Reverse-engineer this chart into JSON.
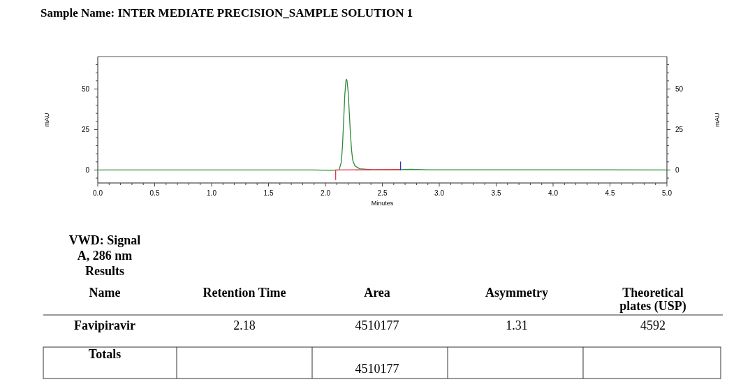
{
  "chart_data": {
    "type": "line",
    "title": "Sample Name: INTER MEDIATE PRECISION_SAMPLE SOLUTION 1",
    "xlabel": "Minutes",
    "ylabel": "mAU",
    "y2label": "mAU",
    "xlim": [
      0,
      5
    ],
    "xticks": [
      {
        "value": 0,
        "label": "0.0"
      },
      {
        "value": 0.1,
        "label": null
      },
      {
        "value": 0.2,
        "label": null
      },
      {
        "value": 0.3,
        "label": null
      },
      {
        "value": 0.4,
        "label": null
      },
      {
        "value": 0.5,
        "label": "0.5"
      },
      {
        "value": 0.6,
        "label": null
      },
      {
        "value": 0.7,
        "label": null
      },
      {
        "value": 0.8,
        "label": null
      },
      {
        "value": 0.9,
        "label": null
      },
      {
        "value": 1,
        "label": "1.0"
      },
      {
        "value": 1.1,
        "label": null
      },
      {
        "value": 1.2,
        "label": null
      },
      {
        "value": 1.3,
        "label": null
      },
      {
        "value": 1.4,
        "label": null
      },
      {
        "value": 1.5,
        "label": "1.5"
      },
      {
        "value": 1.6,
        "label": null
      },
      {
        "value": 1.7,
        "label": null
      },
      {
        "value": 1.8,
        "label": null
      },
      {
        "value": 1.9,
        "label": null
      },
      {
        "value": 2,
        "label": "2.0"
      },
      {
        "value": 2.1,
        "label": null
      },
      {
        "value": 2.2,
        "label": null
      },
      {
        "value": 2.3,
        "label": null
      },
      {
        "value": 2.4,
        "label": null
      },
      {
        "value": 2.5,
        "label": "2.5"
      },
      {
        "value": 2.6,
        "label": null
      },
      {
        "value": 2.7,
        "label": null
      },
      {
        "value": 2.8,
        "label": null
      },
      {
        "value": 2.9,
        "label": null
      },
      {
        "value": 3,
        "label": "3.0"
      },
      {
        "value": 3.1,
        "label": null
      },
      {
        "value": 3.2,
        "label": null
      },
      {
        "value": 3.3,
        "label": null
      },
      {
        "value": 3.4,
        "label": null
      },
      {
        "value": 3.5,
        "label": "3.5"
      },
      {
        "value": 3.6,
        "label": null
      },
      {
        "value": 3.7,
        "label": null
      },
      {
        "value": 3.8,
        "label": null
      },
      {
        "value": 3.9,
        "label": null
      },
      {
        "value": 4,
        "label": "4.0"
      },
      {
        "value": 4.1,
        "label": null
      },
      {
        "value": 4.2,
        "label": null
      },
      {
        "value": 4.3,
        "label": null
      },
      {
        "value": 4.4,
        "label": null
      },
      {
        "value": 4.5,
        "label": "4.5"
      },
      {
        "value": 4.6,
        "label": null
      },
      {
        "value": 4.7,
        "label": null
      },
      {
        "value": 4.8,
        "label": null
      },
      {
        "value": 4.9,
        "label": null
      },
      {
        "value": 5,
        "label": "5.0"
      }
    ],
    "ylim": [
      -8,
      70
    ],
    "yticks": [
      {
        "value": -5,
        "label": null
      },
      0,
      {
        "value": 5,
        "label": null
      },
      {
        "value": 10,
        "label": null
      },
      {
        "value": 15,
        "label": null
      },
      {
        "value": 20,
        "label": null
      },
      25,
      {
        "value": 30,
        "label": null
      },
      {
        "value": 35,
        "label": null
      },
      {
        "value": 40,
        "label": null
      },
      {
        "value": 45,
        "label": null
      },
      50,
      {
        "value": 55,
        "label": null
      },
      {
        "value": 60,
        "label": null
      },
      {
        "value": 65,
        "label": null
      }
    ],
    "y2lim": [
      -8,
      70
    ],
    "y2ticks": [
      {
        "value": -5,
        "label": null
      },
      0,
      {
        "value": 5,
        "label": null
      },
      {
        "value": 10,
        "label": null
      },
      {
        "value": 15,
        "label": null
      },
      {
        "value": 20,
        "label": null
      },
      25,
      {
        "value": 30,
        "label": null
      },
      {
        "value": 35,
        "label": null
      },
      {
        "value": 40,
        "label": null
      },
      {
        "value": 45,
        "label": null
      },
      50,
      {
        "value": 55,
        "label": null
      },
      {
        "value": 60,
        "label": null
      },
      {
        "value": 65,
        "label": null
      }
    ],
    "grid": false,
    "marker": "none",
    "line_style": "solid",
    "series": [
      {
        "color": "#2e8b3a",
        "x": [
          0,
          0.5,
          1,
          1.5,
          1.9,
          2.05,
          2.12,
          2.14,
          2.15,
          2.16,
          2.17,
          2.18,
          2.185,
          2.19,
          2.2,
          2.21,
          2.22,
          2.23,
          2.24,
          2.26,
          2.3,
          2.4,
          2.6,
          2.75,
          2.9,
          3.5,
          4.35,
          5
        ],
        "values": [
          0,
          0,
          0,
          0,
          0,
          -0.2,
          0,
          5,
          15,
          30,
          46,
          55,
          56,
          55,
          48,
          35,
          22,
          12,
          6,
          2.5,
          0.8,
          0.2,
          0.1,
          0.4,
          0.1,
          0.1,
          0.1,
          0
        ]
      },
      {
        "color": "#e8334a",
        "x": [
          2.09,
          2.66
        ],
        "values": [
          0,
          0.3
        ]
      },
      {
        "color": "#e8334a",
        "x": [
          2.09,
          2.09
        ],
        "values": [
          0,
          -6
        ]
      },
      {
        "color": "#3030c0",
        "x": [
          2.66,
          2.66
        ],
        "values": [
          0,
          5
        ]
      }
    ],
    "annotations": [
      "VWD: Signal",
      "A, 286 nm",
      "Results",
      "Name",
      "Retention Time",
      "Area",
      "Asymmetry",
      "Theoretical plates (USP)",
      "Favipiravir",
      "2.18",
      "4510177",
      "1.31",
      "4592",
      "Totals",
      "4510177"
    ]
  }
}
